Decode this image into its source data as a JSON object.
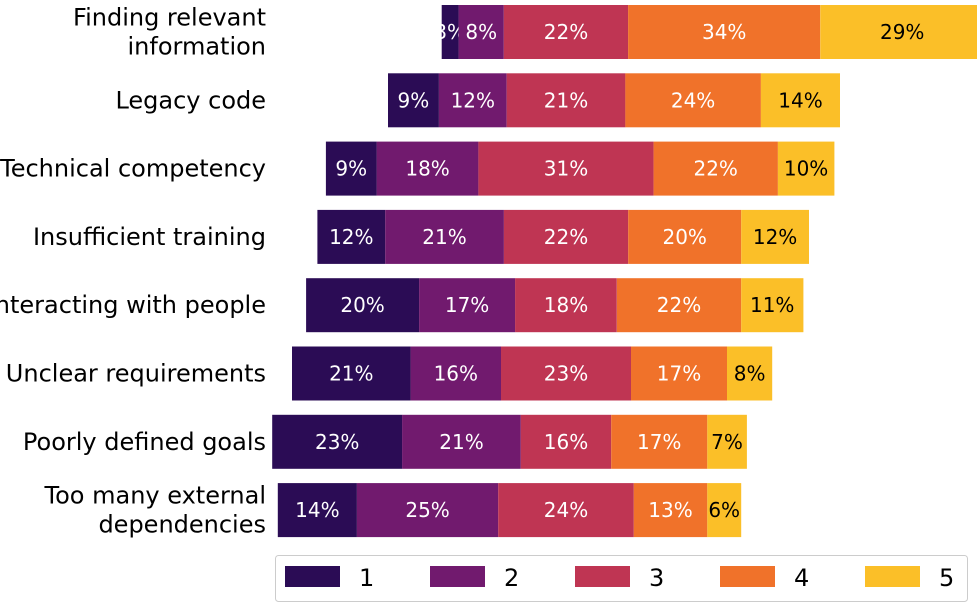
{
  "chart_data": {
    "type": "bar",
    "orientation": "horizontal",
    "stacked": true,
    "alignment": "diverging-centered-on-level-3",
    "categories": [
      [
        "Finding relevant",
        "information"
      ],
      [
        "Legacy code"
      ],
      [
        "Technical competency"
      ],
      [
        "Insufficient training"
      ],
      [
        "Interacting with people"
      ],
      [
        "Unclear requirements"
      ],
      [
        "Poorly defined goals"
      ],
      [
        "Too many external",
        "dependencies"
      ]
    ],
    "series": [
      {
        "name": "1",
        "color": "#2b0c55",
        "label_color": "#ffffff",
        "values": [
          3,
          9,
          9,
          12,
          20,
          21,
          23,
          14
        ]
      },
      {
        "name": "2",
        "color": "#711a6e",
        "label_color": "#ffffff",
        "values": [
          8,
          12,
          18,
          21,
          17,
          16,
          21,
          25
        ]
      },
      {
        "name": "3",
        "color": "#bf3553",
        "label_color": "#ffffff",
        "values": [
          22,
          21,
          31,
          22,
          18,
          23,
          16,
          24
        ]
      },
      {
        "name": "4",
        "color": "#f0722a",
        "label_color": "#ffffff",
        "values": [
          34,
          24,
          22,
          20,
          22,
          17,
          17,
          13
        ]
      },
      {
        "name": "5",
        "color": "#fbbf28",
        "label_color": "#000000",
        "values": [
          29,
          14,
          10,
          12,
          11,
          8,
          7,
          6
        ]
      }
    ],
    "value_suffix": "%",
    "legend": {
      "position": "bottom",
      "entries": [
        "1",
        "2",
        "3",
        "4",
        "5"
      ]
    },
    "title": "",
    "xlabel": "",
    "ylabel": "",
    "grid": false
  }
}
